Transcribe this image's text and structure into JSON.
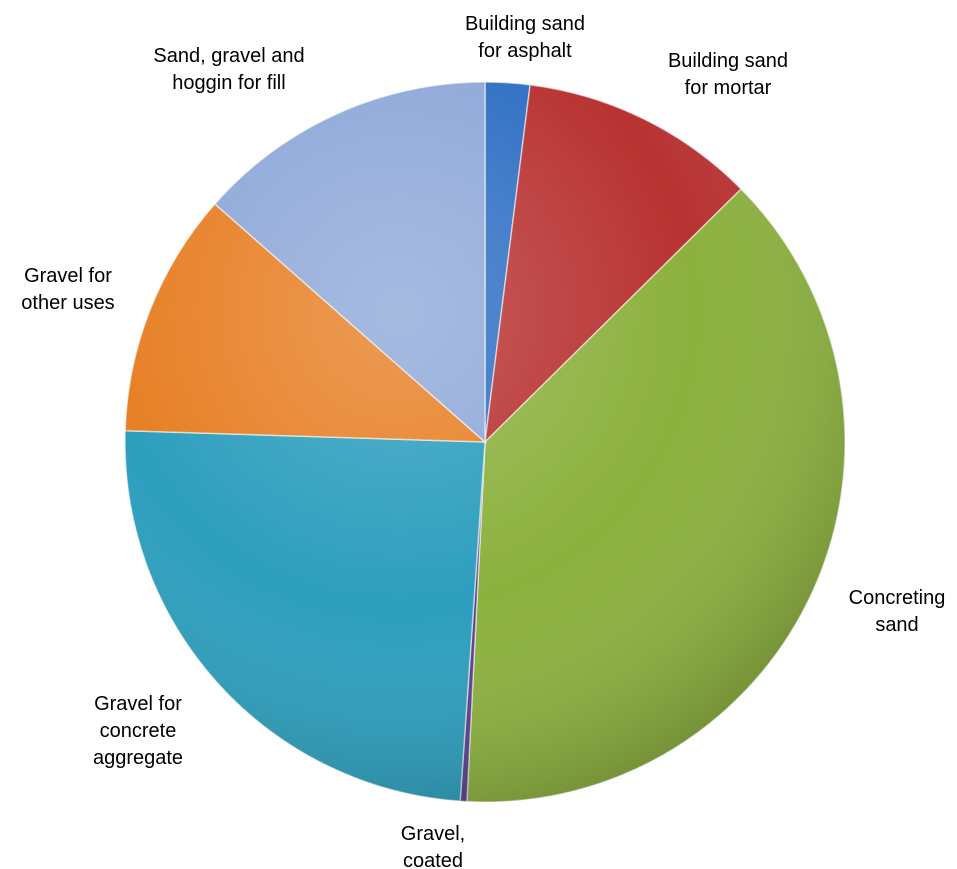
{
  "chart_data": {
    "type": "pie",
    "title": "",
    "legend": "none",
    "slices": [
      {
        "label": "Building sand for asphalt",
        "label_lines": [
          "Building sand",
          "for asphalt"
        ],
        "value": 2.0,
        "color": "#2f6fc4"
      },
      {
        "label": "Building sand for mortar",
        "label_lines": [
          "Building sand",
          "for mortar"
        ],
        "value": 10.6,
        "color": "#b83332"
      },
      {
        "label": "Concreting sand",
        "label_lines": [
          "Concreting",
          "sand"
        ],
        "value": 38.2,
        "color": "#8cb13e"
      },
      {
        "label": "Gravel, coated",
        "label_lines": [
          "Gravel,",
          "coated"
        ],
        "value": 0.3,
        "color": "#5a3f8c"
      },
      {
        "label": "Gravel for concrete aggregate",
        "label_lines": [
          "Gravel for",
          "concrete",
          "aggregate"
        ],
        "value": 24.4,
        "color": "#2c9ebd"
      },
      {
        "label": "Gravel for other uses",
        "label_lines": [
          "Gravel for",
          "other uses"
        ],
        "value": 11.0,
        "color": "#e77f25"
      },
      {
        "label": "Sand, gravel and hoggin for fill",
        "label_lines": [
          "Sand, gravel and",
          "hoggin for fill"
        ],
        "value": 13.5,
        "color": "#8ea8d8"
      }
    ]
  }
}
